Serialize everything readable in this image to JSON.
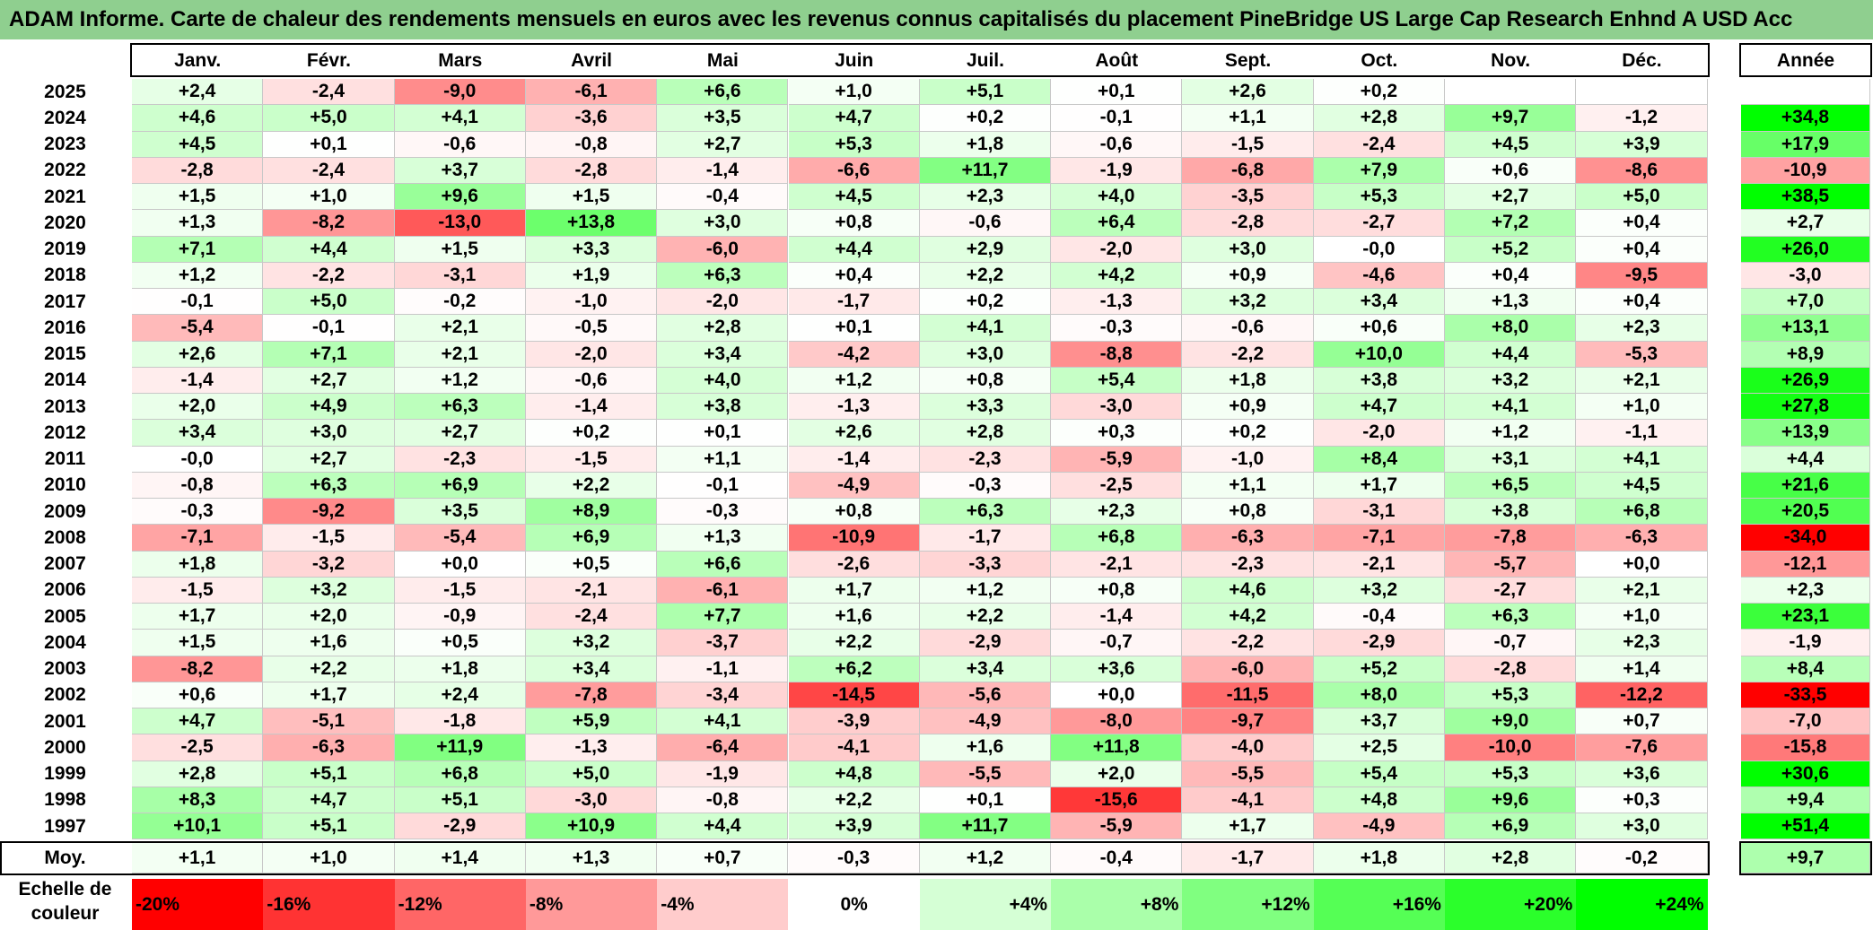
{
  "chart_data": {
    "type": "heatmap",
    "title": "ADAM Informe. Carte de chaleur des rendements mensuels en euros avec les revenus connus capitalisés du placement PineBridge US Large Cap Research Enhnd A USD Acc",
    "months": [
      "Janv.",
      "Févr.",
      "Mars",
      "Avril",
      "Mai",
      "Juin",
      "Juil.",
      "Août",
      "Sept.",
      "Oct.",
      "Nov.",
      "Déc."
    ],
    "annual_header": "Année",
    "rows": [
      {
        "year": "2025",
        "values": [
          "+2,4",
          "-2,4",
          "-9,0",
          "-6,1",
          "+6,6",
          "+1,0",
          "+5,1",
          "+0,1",
          "+2,6",
          "+0,2",
          "",
          ""
        ],
        "annual": ""
      },
      {
        "year": "2024",
        "values": [
          "+4,6",
          "+5,0",
          "+4,1",
          "-3,6",
          "+3,5",
          "+4,7",
          "+0,2",
          "-0,1",
          "+1,1",
          "+2,8",
          "+9,7",
          "-1,2"
        ],
        "annual": "+34,8"
      },
      {
        "year": "2023",
        "values": [
          "+4,5",
          "+0,1",
          "-0,6",
          "-0,8",
          "+2,7",
          "+5,3",
          "+1,8",
          "-0,6",
          "-1,5",
          "-2,4",
          "+4,5",
          "+3,9"
        ],
        "annual": "+17,9"
      },
      {
        "year": "2022",
        "values": [
          "-2,8",
          "-2,4",
          "+3,7",
          "-2,8",
          "-1,4",
          "-6,6",
          "+11,7",
          "-1,9",
          "-6,8",
          "+7,9",
          "+0,6",
          "-8,6"
        ],
        "annual": "-10,9"
      },
      {
        "year": "2021",
        "values": [
          "+1,5",
          "+1,0",
          "+9,6",
          "+1,5",
          "-0,4",
          "+4,5",
          "+2,3",
          "+4,0",
          "-3,5",
          "+5,3",
          "+2,7",
          "+5,0"
        ],
        "annual": "+38,5"
      },
      {
        "year": "2020",
        "values": [
          "+1,3",
          "-8,2",
          "-13,0",
          "+13,8",
          "+3,0",
          "+0,8",
          "-0,6",
          "+6,4",
          "-2,8",
          "-2,7",
          "+7,2",
          "+0,4"
        ],
        "annual": "+2,7"
      },
      {
        "year": "2019",
        "values": [
          "+7,1",
          "+4,4",
          "+1,5",
          "+3,3",
          "-6,0",
          "+4,4",
          "+2,9",
          "-2,0",
          "+3,0",
          "-0,0",
          "+5,2",
          "+0,4"
        ],
        "annual": "+26,0"
      },
      {
        "year": "2018",
        "values": [
          "+1,2",
          "-2,2",
          "-3,1",
          "+1,9",
          "+6,3",
          "+0,4",
          "+2,2",
          "+4,2",
          "+0,9",
          "-4,6",
          "+0,4",
          "-9,5"
        ],
        "annual": "-3,0"
      },
      {
        "year": "2017",
        "values": [
          "-0,1",
          "+5,0",
          "-0,2",
          "-1,0",
          "-2,0",
          "-1,7",
          "+0,2",
          "-1,3",
          "+3,2",
          "+3,4",
          "+1,3",
          "+0,4"
        ],
        "annual": "+7,0"
      },
      {
        "year": "2016",
        "values": [
          "-5,4",
          "-0,1",
          "+2,1",
          "-0,5",
          "+2,8",
          "+0,1",
          "+4,1",
          "-0,3",
          "-0,6",
          "+0,6",
          "+8,0",
          "+2,3"
        ],
        "annual": "+13,1"
      },
      {
        "year": "2015",
        "values": [
          "+2,6",
          "+7,1",
          "+2,1",
          "-2,0",
          "+3,4",
          "-4,2",
          "+3,0",
          "-8,8",
          "-2,2",
          "+10,0",
          "+4,4",
          "-5,3"
        ],
        "annual": "+8,9"
      },
      {
        "year": "2014",
        "values": [
          "-1,4",
          "+2,7",
          "+1,2",
          "-0,6",
          "+4,0",
          "+1,2",
          "+0,8",
          "+5,4",
          "+1,8",
          "+3,8",
          "+3,2",
          "+2,1"
        ],
        "annual": "+26,9"
      },
      {
        "year": "2013",
        "values": [
          "+2,0",
          "+4,9",
          "+6,3",
          "-1,4",
          "+3,8",
          "-1,3",
          "+3,3",
          "-3,0",
          "+0,9",
          "+4,7",
          "+4,1",
          "+1,0"
        ],
        "annual": "+27,8"
      },
      {
        "year": "2012",
        "values": [
          "+3,4",
          "+3,0",
          "+2,7",
          "+0,2",
          "+0,1",
          "+2,6",
          "+2,8",
          "+0,3",
          "+0,2",
          "-2,0",
          "+1,2",
          "-1,1"
        ],
        "annual": "+13,9"
      },
      {
        "year": "2011",
        "values": [
          "-0,0",
          "+2,7",
          "-2,3",
          "-1,5",
          "+1,1",
          "-1,4",
          "-2,3",
          "-5,9",
          "-1,0",
          "+8,4",
          "+3,1",
          "+4,1"
        ],
        "annual": "+4,4"
      },
      {
        "year": "2010",
        "values": [
          "-0,8",
          "+6,3",
          "+6,9",
          "+2,2",
          "-0,1",
          "-4,9",
          "-0,3",
          "-2,5",
          "+1,1",
          "+1,7",
          "+6,5",
          "+4,5"
        ],
        "annual": "+21,6"
      },
      {
        "year": "2009",
        "values": [
          "-0,3",
          "-9,2",
          "+3,5",
          "+8,9",
          "-0,3",
          "+0,8",
          "+6,3",
          "+2,3",
          "+0,8",
          "-3,1",
          "+3,8",
          "+6,8"
        ],
        "annual": "+20,5"
      },
      {
        "year": "2008",
        "values": [
          "-7,1",
          "-1,5",
          "-5,4",
          "+6,9",
          "+1,3",
          "-10,9",
          "-1,7",
          "+6,8",
          "-6,3",
          "-7,1",
          "-7,8",
          "-6,3"
        ],
        "annual": "-34,0"
      },
      {
        "year": "2007",
        "values": [
          "+1,8",
          "-3,2",
          "+0,0",
          "+0,5",
          "+6,6",
          "-2,6",
          "-3,3",
          "-2,1",
          "-2,3",
          "-2,1",
          "-5,7",
          "+0,0"
        ],
        "annual": "-12,1"
      },
      {
        "year": "2006",
        "values": [
          "-1,5",
          "+3,2",
          "-1,5",
          "-2,1",
          "-6,1",
          "+1,7",
          "+1,2",
          "+0,8",
          "+4,6",
          "+3,2",
          "-2,7",
          "+2,1"
        ],
        "annual": "+2,3"
      },
      {
        "year": "2005",
        "values": [
          "+1,7",
          "+2,0",
          "-0,9",
          "-2,4",
          "+7,7",
          "+1,6",
          "+2,2",
          "-1,4",
          "+4,2",
          "-0,4",
          "+6,3",
          "+1,0"
        ],
        "annual": "+23,1"
      },
      {
        "year": "2004",
        "values": [
          "+1,5",
          "+1,6",
          "+0,5",
          "+3,2",
          "-3,7",
          "+2,2",
          "-2,9",
          "-0,7",
          "-2,2",
          "-2,9",
          "-0,7",
          "+2,3"
        ],
        "annual": "-1,9"
      },
      {
        "year": "2003",
        "values": [
          "-8,2",
          "+2,2",
          "+1,8",
          "+3,4",
          "-1,1",
          "+6,2",
          "+3,4",
          "+3,6",
          "-6,0",
          "+5,2",
          "-2,8",
          "+1,4"
        ],
        "annual": "+8,4"
      },
      {
        "year": "2002",
        "values": [
          "+0,6",
          "+1,7",
          "+2,4",
          "-7,8",
          "-3,4",
          "-14,5",
          "-5,6",
          "+0,0",
          "-11,5",
          "+8,0",
          "+5,3",
          "-12,2"
        ],
        "annual": "-33,5"
      },
      {
        "year": "2001",
        "values": [
          "+4,7",
          "-5,1",
          "-1,8",
          "+5,9",
          "+4,1",
          "-3,9",
          "-4,9",
          "-8,0",
          "-9,7",
          "+3,7",
          "+9,0",
          "+0,7"
        ],
        "annual": "-7,0"
      },
      {
        "year": "2000",
        "values": [
          "-2,5",
          "-6,3",
          "+11,9",
          "-1,3",
          "-6,4",
          "-4,1",
          "+1,6",
          "+11,8",
          "-4,0",
          "+2,5",
          "-10,0",
          "-7,6"
        ],
        "annual": "-15,8"
      },
      {
        "year": "1999",
        "values": [
          "+2,8",
          "+5,1",
          "+6,8",
          "+5,0",
          "-1,9",
          "+4,8",
          "-5,5",
          "+2,0",
          "-5,5",
          "+5,4",
          "+5,3",
          "+3,6"
        ],
        "annual": "+30,6"
      },
      {
        "year": "1998",
        "values": [
          "+8,3",
          "+4,7",
          "+5,1",
          "-3,0",
          "-0,8",
          "+2,2",
          "+0,1",
          "-15,6",
          "-4,1",
          "+4,8",
          "+9,6",
          "+0,3"
        ],
        "annual": "+9,4"
      },
      {
        "year": "1997",
        "values": [
          "+10,1",
          "+5,1",
          "-2,9",
          "+10,9",
          "+4,4",
          "+3,9",
          "+11,7",
          "-5,9",
          "+1,7",
          "-4,9",
          "+6,9",
          "+3,0"
        ],
        "annual": "+51,4"
      }
    ],
    "average": {
      "label": "Moy.",
      "values": [
        "+1,1",
        "+1,0",
        "+1,4",
        "+1,3",
        "+0,7",
        "-0,3",
        "+1,2",
        "-0,4",
        "-1,7",
        "+1,8",
        "+2,8",
        "-0,2"
      ],
      "annual": "+9,7"
    },
    "scale": {
      "label_line1": "Echelle de",
      "label_line2": "couleur",
      "stops": [
        "-20%",
        "-16%",
        "-12%",
        "-8%",
        "-4%",
        "0%",
        "+4%",
        "+8%",
        "+12%",
        "+16%",
        "+20%",
        "+24%"
      ]
    },
    "colors": {
      "title_bg": "#8fcf8f",
      "negative_max": "#ff0000",
      "neutral": "#ffffff",
      "positive_max": "#00ff00"
    }
  }
}
